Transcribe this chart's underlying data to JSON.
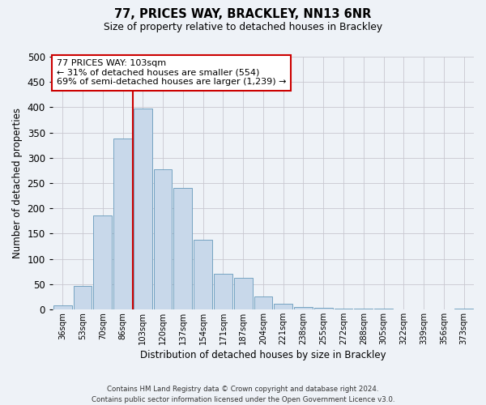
{
  "title": "77, PRICES WAY, BRACKLEY, NN13 6NR",
  "subtitle": "Size of property relative to detached houses in Brackley",
  "xlabel": "Distribution of detached houses by size in Brackley",
  "ylabel": "Number of detached properties",
  "categories": [
    "36sqm",
    "53sqm",
    "70sqm",
    "86sqm",
    "103sqm",
    "120sqm",
    "137sqm",
    "154sqm",
    "171sqm",
    "187sqm",
    "204sqm",
    "221sqm",
    "238sqm",
    "255sqm",
    "272sqm",
    "288sqm",
    "305sqm",
    "322sqm",
    "339sqm",
    "356sqm",
    "373sqm"
  ],
  "values": [
    8,
    46,
    185,
    338,
    398,
    277,
    240,
    137,
    70,
    62,
    25,
    11,
    5,
    3,
    2,
    1,
    1,
    0,
    0,
    0,
    2
  ],
  "bar_color": "#c8d8ea",
  "bar_edge_color": "#6699bb",
  "vline_color": "#cc0000",
  "annotation_title": "77 PRICES WAY: 103sqm",
  "annotation_line1": "← 31% of detached houses are smaller (554)",
  "annotation_line2": "69% of semi-detached houses are larger (1,239) →",
  "annotation_box_facecolor": "#ffffff",
  "annotation_box_edgecolor": "#cc0000",
  "ylim": [
    0,
    500
  ],
  "yticks": [
    0,
    50,
    100,
    150,
    200,
    250,
    300,
    350,
    400,
    450,
    500
  ],
  "footer_line1": "Contains HM Land Registry data © Crown copyright and database right 2024.",
  "footer_line2": "Contains public sector information licensed under the Open Government Licence v3.0.",
  "background_color": "#eef2f7",
  "grid_color": "#c8c8d0"
}
